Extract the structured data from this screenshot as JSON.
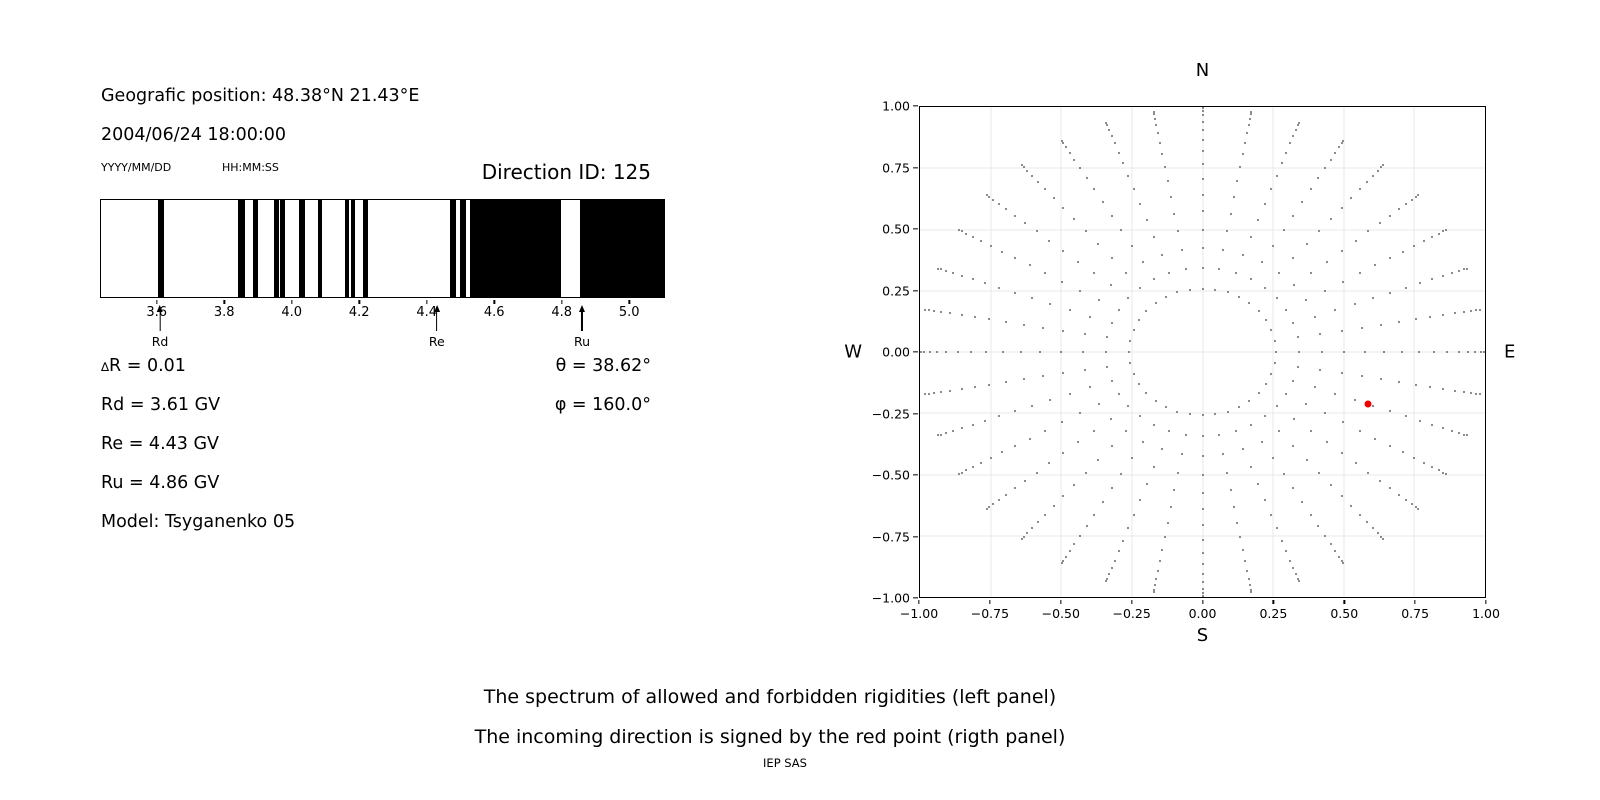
{
  "header": {
    "position_line": "Geografic position: 48.38°N 21.43°E",
    "datetime_line": "2004/06/24 18:00:00",
    "date_format_hint": "YYYY/MM/DD",
    "time_format_hint": "HH:MM:SS",
    "direction_id": "Direction ID: 125"
  },
  "stats": {
    "delta_r_symbol": "∆",
    "delta_r_rest": "R = 0.01",
    "rd": "Rd = 3.61 GV",
    "re": "Re = 4.43 GV",
    "ru": "Ru = 4.86 GV",
    "model": "Model: Tsyganenko 05",
    "theta": "θ = 38.62°",
    "phi": "φ = 160.0°"
  },
  "caption": {
    "line1": "The spectrum of allowed and forbidden rigidities (left panel)",
    "line2": "The incoming direction is signed by the red point (rigth panel)",
    "credit": "IEP SAS"
  },
  "chart_data": [
    {
      "type": "bar",
      "name": "rigidity-spectrum",
      "description": "Spectrum of allowed (white) and forbidden (black) rigidities in GV",
      "xlim": [
        3.432,
        5.106
      ],
      "xticks": [
        3.6,
        3.8,
        4.0,
        4.2,
        4.4,
        4.6,
        4.8,
        5.0
      ],
      "xtick_labels": [
        "3.6",
        "3.8",
        "4.0",
        "4.2",
        "4.4",
        "4.6",
        "4.8",
        "5.0"
      ],
      "band_color": "#000000",
      "forbidden_bands_gv": [
        [
          3.6,
          3.618
        ],
        [
          3.839,
          3.86
        ],
        [
          3.884,
          3.9
        ],
        [
          3.947,
          3.961
        ],
        [
          3.965,
          3.978
        ],
        [
          4.022,
          4.038
        ],
        [
          4.076,
          4.09
        ],
        [
          4.158,
          4.17
        ],
        [
          4.175,
          4.188
        ],
        [
          4.212,
          4.227
        ],
        [
          4.469,
          4.487
        ],
        [
          4.5,
          4.516
        ],
        [
          4.528,
          4.8
        ],
        [
          4.857,
          5.106
        ]
      ],
      "annotations": [
        {
          "label": "Rd",
          "x": 3.61
        },
        {
          "label": "Re",
          "x": 4.43
        },
        {
          "label": "Ru",
          "x": 4.86
        }
      ]
    },
    {
      "type": "scatter",
      "name": "incoming-direction-map",
      "xlim": [
        -1,
        1
      ],
      "ylim": [
        -1,
        1
      ],
      "grid": true,
      "xticks": [
        -1,
        -0.75,
        -0.5,
        -0.25,
        0,
        0.25,
        0.5,
        0.75,
        1
      ],
      "yticks": [
        -1,
        -0.75,
        -0.5,
        -0.25,
        0,
        0.25,
        0.5,
        0.75,
        1
      ],
      "xtick_labels": [
        "−1.00",
        "−0.75",
        "−0.50",
        "−0.25",
        "0.00",
        "0.25",
        "0.50",
        "0.75",
        "1.00"
      ],
      "ytick_labels": [
        "−1.00",
        "−0.75",
        "−0.50",
        "−0.25",
        "0.00",
        "0.25",
        "0.50",
        "0.75",
        "1.00"
      ],
      "cardinal": {
        "north": "N",
        "south": "S",
        "west": "W",
        "east": "E"
      },
      "series": [
        {
          "name": "direction-grid-dots",
          "marker": "square",
          "color": "#8c8c8c",
          "generator": {
            "azimuth_deg": {
              "start": 0,
              "stop": 350,
              "step": 10
            },
            "zenith_deg": {
              "start": 15,
              "stop": 85,
              "step": 5
            },
            "radius_rule": "r = sin(zenith); x = r*sin(azimuth); y = r*cos(azimuth)"
          }
        },
        {
          "name": "incoming-direction-point",
          "marker": "circle",
          "color": "#f10000",
          "points": [
            [
              0.586,
              -0.213
            ]
          ],
          "theta_deg": 38.62,
          "phi_deg": 160.0
        }
      ]
    }
  ]
}
